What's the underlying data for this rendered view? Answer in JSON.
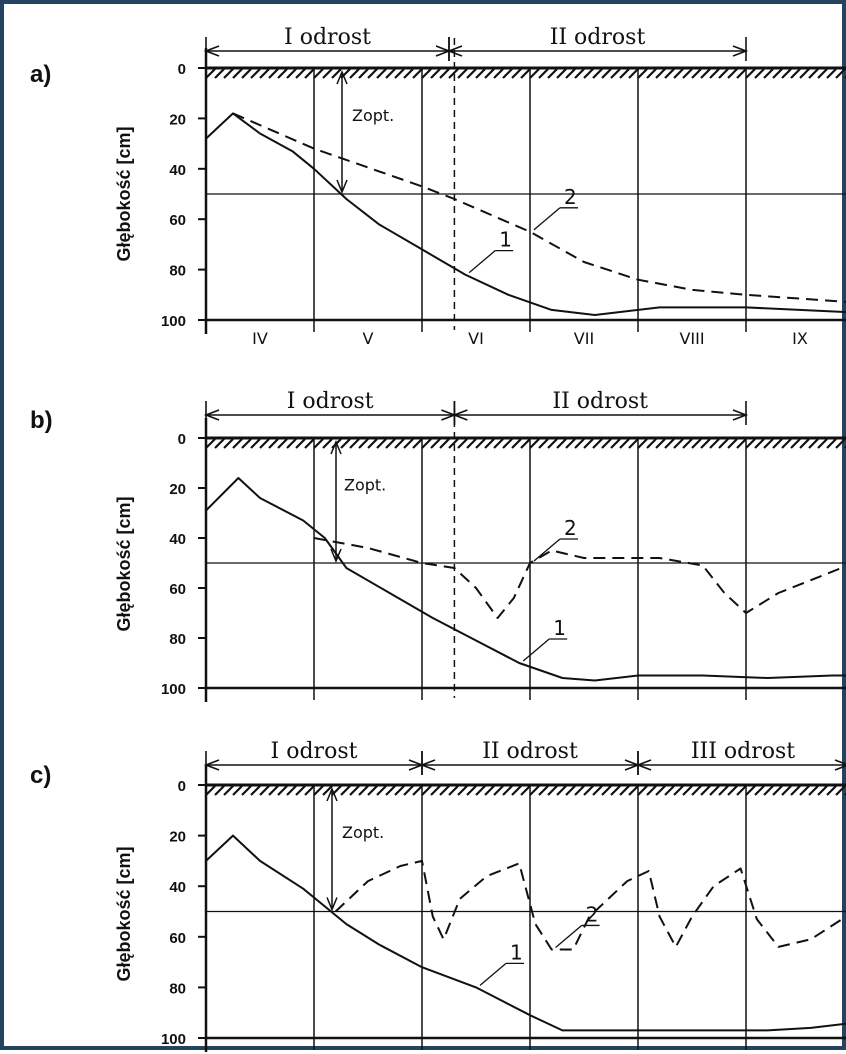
{
  "chart_data": [
    {
      "panel": "a)",
      "type": "line",
      "ylabel": "Głębokość [cm]",
      "yticks": [
        "0",
        "20",
        "40",
        "60",
        "80",
        "100"
      ],
      "ylim": [
        0,
        100
      ],
      "y_inverted": true,
      "months": [
        "IV",
        "V",
        "VI",
        "VII",
        "VIII",
        "IX"
      ],
      "periods": [
        {
          "label": "I odrost",
          "start": 0,
          "end": 2.25
        },
        {
          "label": "II odrost",
          "start": 2.25,
          "end": 5
        }
      ],
      "z_opt_label": "Zopt.",
      "z_opt": 50,
      "series": [
        {
          "name": "1",
          "dashed": false,
          "points": [
            [
              0,
              28
            ],
            [
              0.25,
              18
            ],
            [
              0.5,
              26
            ],
            [
              0.8,
              33
            ],
            [
              1,
              40
            ],
            [
              1.3,
              52
            ],
            [
              1.6,
              62
            ],
            [
              2,
              72
            ],
            [
              2.4,
              82
            ],
            [
              2.8,
              90
            ],
            [
              3.2,
              96
            ],
            [
              3.6,
              98
            ],
            [
              4.2,
              95
            ],
            [
              5,
              95
            ],
            [
              6,
              97
            ]
          ]
        },
        {
          "name": "2",
          "dashed": true,
          "points": [
            [
              0.25,
              18
            ],
            [
              1,
              32
            ],
            [
              2,
              47
            ],
            [
              2.3,
              52
            ],
            [
              3,
              65
            ],
            [
              3.5,
              77
            ],
            [
              4,
              84
            ],
            [
              4.5,
              88
            ],
            [
              5,
              90
            ],
            [
              6,
              93
            ]
          ]
        }
      ]
    },
    {
      "panel": "b)",
      "type": "line",
      "ylabel": "Głębokość [cm]",
      "yticks": [
        "0",
        "20",
        "40",
        "60",
        "80",
        "100"
      ],
      "ylim": [
        0,
        100
      ],
      "y_inverted": true,
      "months": [],
      "periods": [
        {
          "label": "I odrost",
          "start": 0,
          "end": 2.3
        },
        {
          "label": "II odrost",
          "start": 2.3,
          "end": 5
        }
      ],
      "z_opt_label": "Zopt.",
      "z_opt": 50,
      "series": [
        {
          "name": "1",
          "dashed": false,
          "points": [
            [
              0,
              29
            ],
            [
              0.3,
              16
            ],
            [
              0.5,
              24
            ],
            [
              0.9,
              33
            ],
            [
              1.1,
              40
            ],
            [
              1.3,
              52
            ],
            [
              1.7,
              62
            ],
            [
              2.1,
              72
            ],
            [
              2.5,
              81
            ],
            [
              2.9,
              90
            ],
            [
              3.3,
              96
            ],
            [
              3.6,
              97
            ],
            [
              4,
              95
            ],
            [
              4.6,
              95
            ],
            [
              5.2,
              96
            ],
            [
              5.8,
              95
            ],
            [
              6,
              95
            ]
          ]
        },
        {
          "name": "2",
          "dashed": true,
          "points": [
            [
              1,
              40
            ],
            [
              1.5,
              44
            ],
            [
              2,
              50
            ],
            [
              2.3,
              52
            ],
            [
              2.5,
              60
            ],
            [
              2.7,
              72
            ],
            [
              2.85,
              64
            ],
            [
              3,
              50
            ],
            [
              3.2,
              45
            ],
            [
              3.5,
              48
            ],
            [
              4.2,
              48
            ],
            [
              4.6,
              51
            ],
            [
              4.8,
              62
            ],
            [
              5,
              70
            ],
            [
              5.3,
              62
            ],
            [
              6,
              50
            ]
          ]
        }
      ]
    },
    {
      "panel": "c)",
      "type": "line",
      "ylabel": "Głębokość [cm]",
      "yticks": [
        "0",
        "20",
        "40",
        "60",
        "80",
        "100"
      ],
      "ylim": [
        0,
        100
      ],
      "y_inverted": true,
      "months": [],
      "periods": [
        {
          "label": "I odrost",
          "start": 0,
          "end": 2
        },
        {
          "label": "II odrost",
          "start": 2,
          "end": 4
        },
        {
          "label": "III odrost",
          "start": 4,
          "end": 6
        }
      ],
      "z_opt_label": "Zopt.",
      "z_opt": 50,
      "series": [
        {
          "name": "1",
          "dashed": false,
          "points": [
            [
              0,
              30
            ],
            [
              0.25,
              20
            ],
            [
              0.5,
              30
            ],
            [
              0.9,
              41
            ],
            [
              1.1,
              48
            ],
            [
              1.3,
              55
            ],
            [
              1.6,
              63
            ],
            [
              2,
              72
            ],
            [
              2.5,
              80
            ],
            [
              3,
              91
            ],
            [
              3.3,
              97
            ],
            [
              3.6,
              97
            ],
            [
              4.3,
              97
            ],
            [
              5.2,
              97
            ],
            [
              5.6,
              96
            ],
            [
              6,
              94
            ]
          ]
        },
        {
          "name": "2",
          "dashed": true,
          "points": [
            [
              1.2,
              50
            ],
            [
              1.5,
              38
            ],
            [
              1.8,
              32
            ],
            [
              2,
              30
            ],
            [
              2.1,
              52
            ],
            [
              2.2,
              61
            ],
            [
              2.35,
              45
            ],
            [
              2.6,
              36
            ],
            [
              2.9,
              31
            ],
            [
              3.05,
              55
            ],
            [
              3.2,
              65
            ],
            [
              3.4,
              65
            ],
            [
              3.55,
              52
            ],
            [
              3.9,
              38
            ],
            [
              4.1,
              34
            ],
            [
              4.2,
              52
            ],
            [
              4.35,
              64
            ],
            [
              4.5,
              52
            ],
            [
              4.7,
              40
            ],
            [
              4.95,
              33
            ],
            [
              5.1,
              53
            ],
            [
              5.3,
              64
            ],
            [
              5.6,
              61
            ],
            [
              6,
              50
            ]
          ]
        }
      ]
    }
  ]
}
